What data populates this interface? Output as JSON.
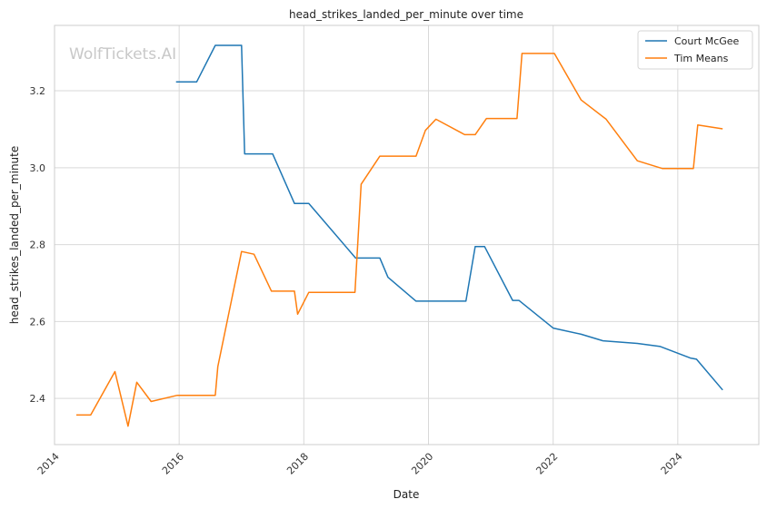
{
  "watermark": "WolfTickets.AI",
  "chart_data": {
    "type": "line",
    "title": "head_strikes_landed_per_minute over time",
    "xlabel": "Date",
    "ylabel": "head_strikes_landed_per_minute",
    "xlim": [
      2014.0,
      2025.3
    ],
    "ylim": [
      2.28,
      3.37
    ],
    "x_ticks": [
      2014,
      2016,
      2018,
      2020,
      2022,
      2024
    ],
    "y_ticks": [
      2.4,
      2.6,
      2.8,
      3.0,
      3.2
    ],
    "y_tick_labels": [
      "2.4",
      "2.6",
      "2.8",
      "3.0",
      "3.2"
    ],
    "grid": true,
    "legend_position": "top-right",
    "series": [
      {
        "name": "Court McGee",
        "color": "#1f77b4",
        "points": [
          [
            2015.95,
            3.223
          ],
          [
            2016.28,
            3.223
          ],
          [
            2016.58,
            3.318
          ],
          [
            2017.0,
            3.318
          ],
          [
            2017.05,
            3.036
          ],
          [
            2017.5,
            3.036
          ],
          [
            2017.85,
            2.907
          ],
          [
            2018.08,
            2.907
          ],
          [
            2018.83,
            2.765
          ],
          [
            2019.22,
            2.765
          ],
          [
            2019.35,
            2.715
          ],
          [
            2019.8,
            2.653
          ],
          [
            2020.6,
            2.653
          ],
          [
            2020.75,
            2.795
          ],
          [
            2020.9,
            2.795
          ],
          [
            2021.35,
            2.655
          ],
          [
            2021.45,
            2.655
          ],
          [
            2022.0,
            2.583
          ],
          [
            2022.45,
            2.567
          ],
          [
            2022.8,
            2.55
          ],
          [
            2023.35,
            2.543
          ],
          [
            2023.72,
            2.535
          ],
          [
            2024.2,
            2.505
          ],
          [
            2024.3,
            2.502
          ],
          [
            2024.72,
            2.422
          ]
        ]
      },
      {
        "name": "Tim Means",
        "color": "#ff7f0e",
        "points": [
          [
            2014.35,
            2.357
          ],
          [
            2014.58,
            2.357
          ],
          [
            2014.97,
            2.47
          ],
          [
            2015.18,
            2.328
          ],
          [
            2015.32,
            2.442
          ],
          [
            2015.55,
            2.392
          ],
          [
            2015.97,
            2.408
          ],
          [
            2016.58,
            2.408
          ],
          [
            2016.62,
            2.483
          ],
          [
            2017.0,
            2.782
          ],
          [
            2017.2,
            2.775
          ],
          [
            2017.48,
            2.679
          ],
          [
            2017.85,
            2.679
          ],
          [
            2017.9,
            2.619
          ],
          [
            2018.08,
            2.676
          ],
          [
            2018.82,
            2.676
          ],
          [
            2018.92,
            2.957
          ],
          [
            2019.22,
            3.03
          ],
          [
            2019.8,
            3.03
          ],
          [
            2019.95,
            3.097
          ],
          [
            2020.12,
            3.126
          ],
          [
            2020.58,
            3.086
          ],
          [
            2020.75,
            3.086
          ],
          [
            2020.93,
            3.128
          ],
          [
            2021.42,
            3.128
          ],
          [
            2021.5,
            3.297
          ],
          [
            2022.02,
            3.297
          ],
          [
            2022.45,
            3.176
          ],
          [
            2022.85,
            3.126
          ],
          [
            2023.35,
            3.018
          ],
          [
            2023.75,
            2.998
          ],
          [
            2024.25,
            2.998
          ],
          [
            2024.32,
            3.111
          ],
          [
            2024.72,
            3.101
          ]
        ]
      }
    ]
  }
}
